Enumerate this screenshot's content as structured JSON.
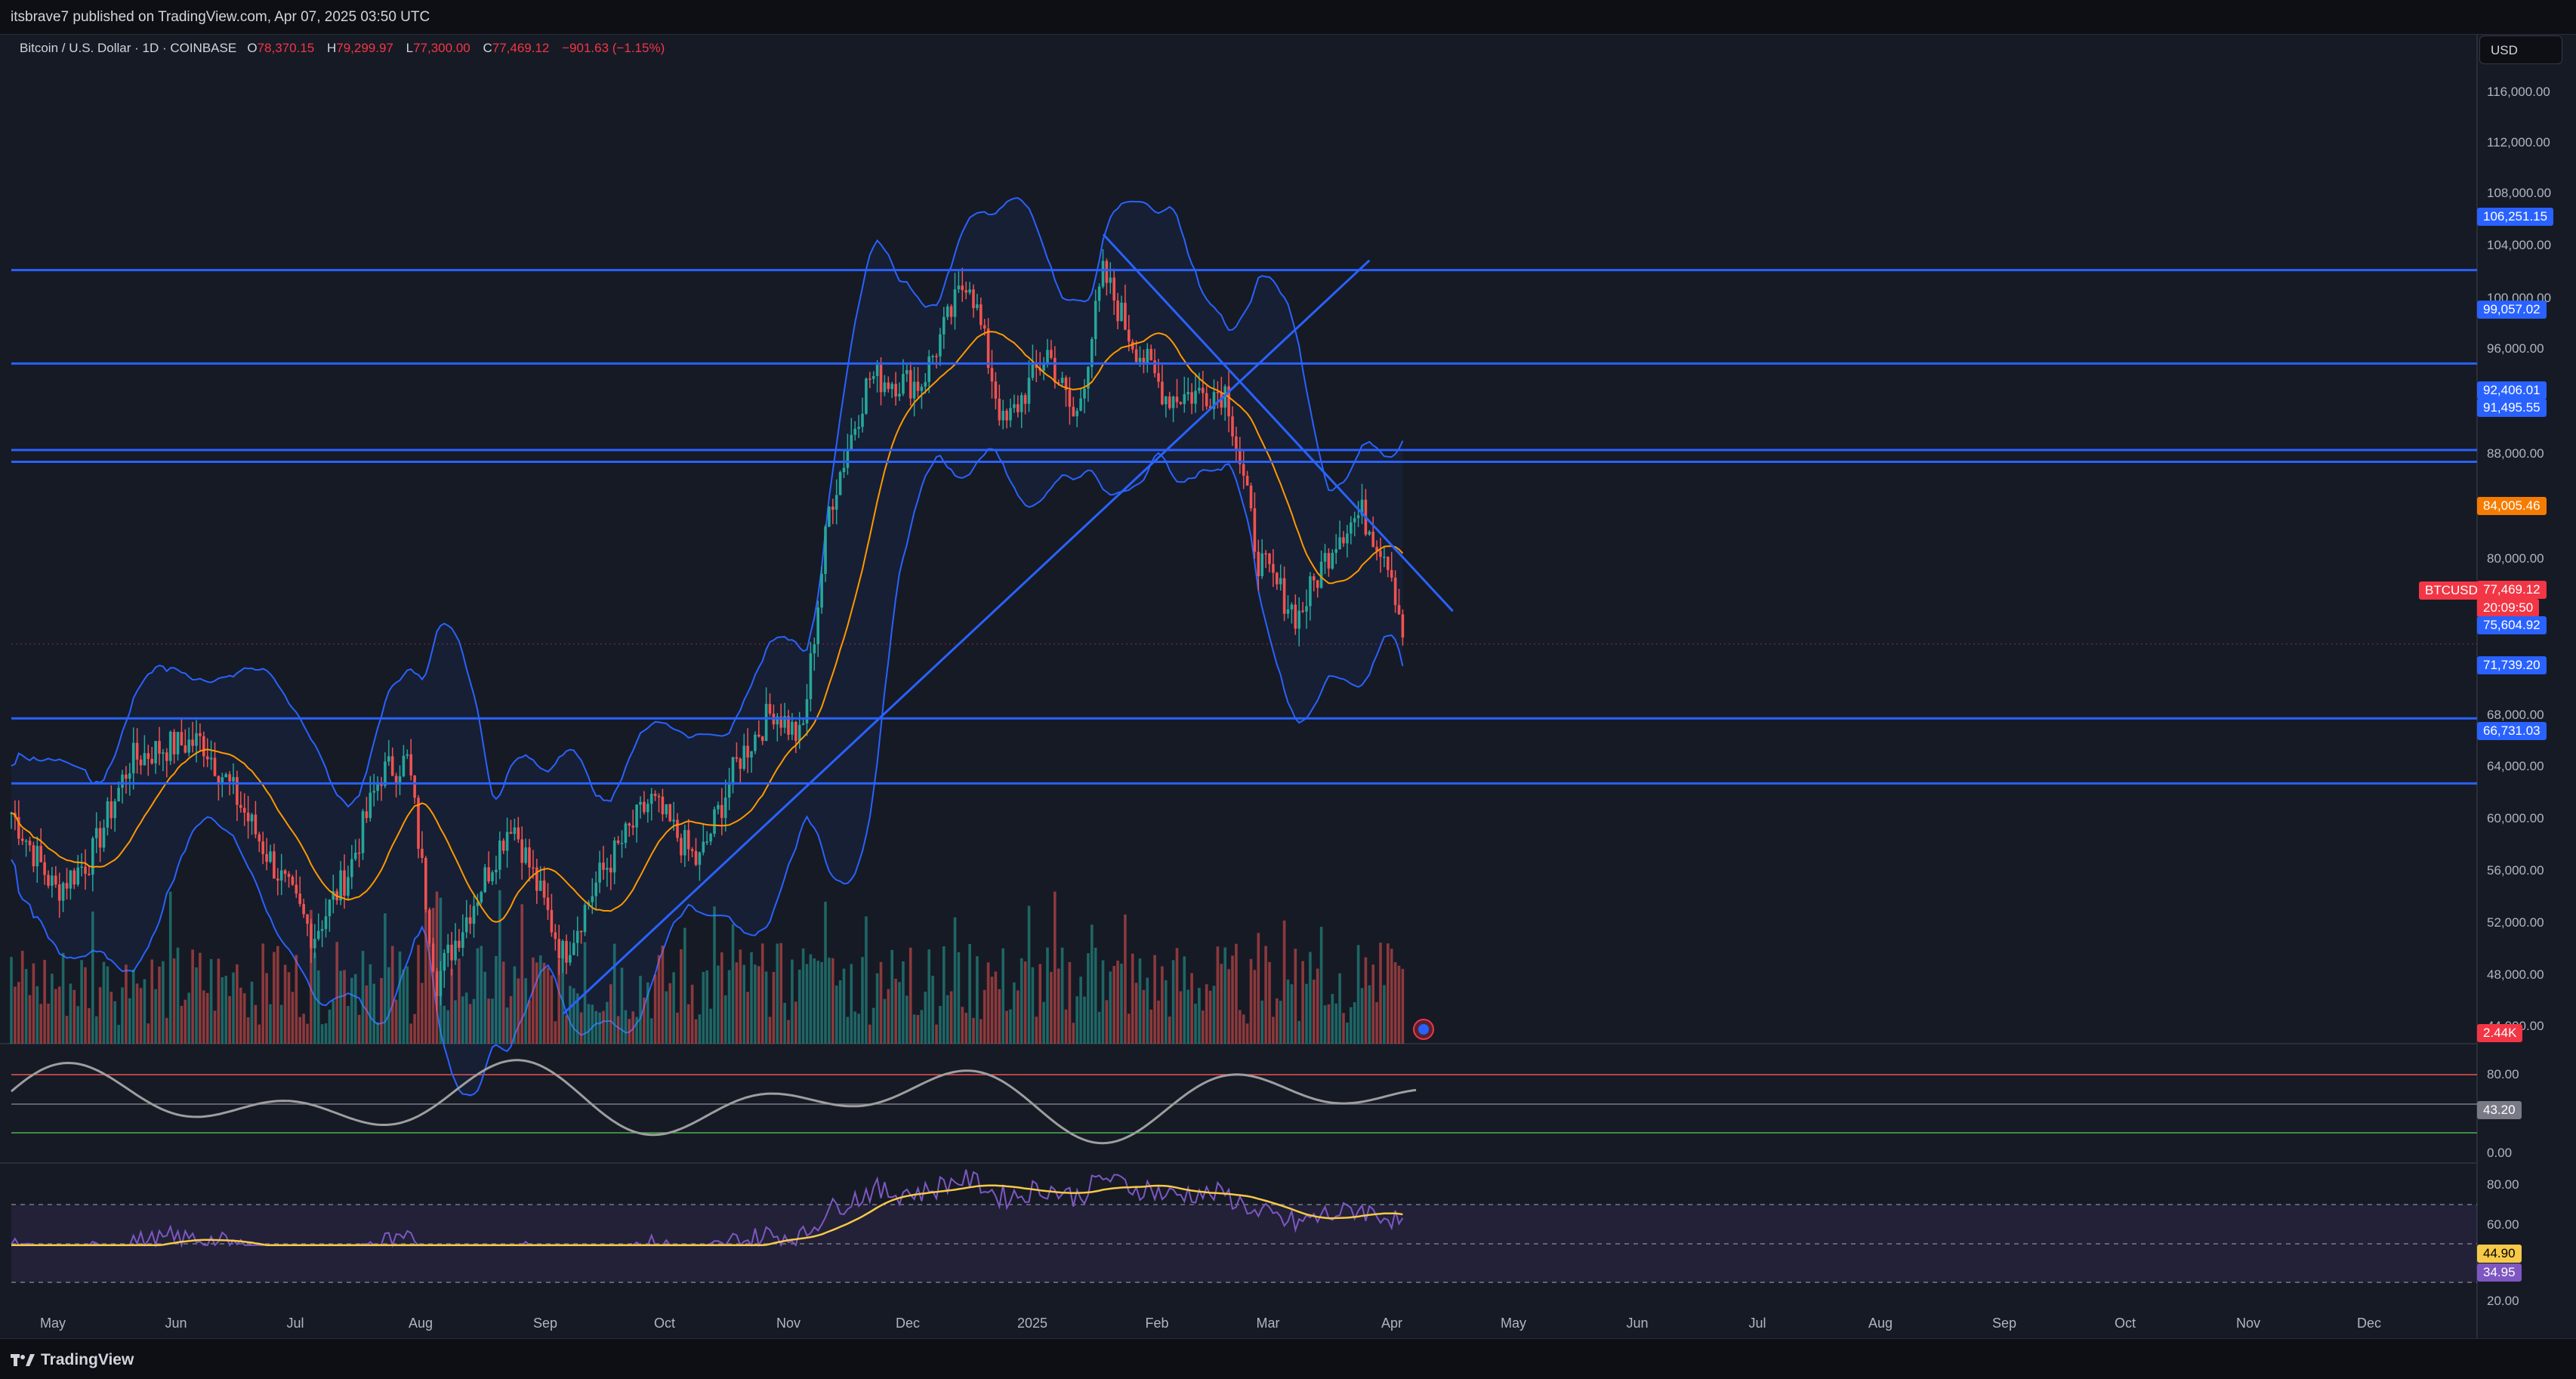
{
  "header": {
    "publisher_line": "itsbrave7 published on TradingView.com, Apr 07, 2025 03:50 UTC"
  },
  "legend": {
    "symbol": "Bitcoin / U.S. Dollar · 1D · COINBASE",
    "open_key": "O",
    "open": "78,370.15",
    "high_key": "H",
    "high": "79,299.97",
    "low_key": "L",
    "low": "77,300.00",
    "close_key": "C",
    "close": "77,469.12",
    "change": "−901.63 (−1.15%)"
  },
  "currency_button": "USD",
  "price_axis": {
    "ticks": [
      "116,000.00",
      "112,000.00",
      "108,000.00",
      "104,000.00",
      "100,000.00",
      "96,000.00",
      "88,000.00",
      "80,000.00",
      "68,000.00",
      "64,000.00",
      "60,000.00",
      "56,000.00",
      "52,000.00",
      "48,000.00",
      "44,000.00"
    ],
    "levels": [
      {
        "label": "106,251.15",
        "color": "#2962ff"
      },
      {
        "label": "99,057.02",
        "color": "#2962ff"
      },
      {
        "label": "92,406.01",
        "color": "#2962ff"
      },
      {
        "label": "91,495.55",
        "color": "#2962ff"
      },
      {
        "label": "84,005.46",
        "color": "#f57c00"
      },
      {
        "label": "77,469.12",
        "color": "#f23645"
      },
      {
        "label": "20:09:50",
        "color": "#f23645"
      },
      {
        "label": "75,604.92",
        "color": "#2962ff"
      },
      {
        "label": "71,739.20",
        "color": "#2962ff"
      },
      {
        "label": "66,731.03",
        "color": "#2962ff"
      }
    ],
    "symbol_tag": "BTCUSD",
    "volume_badge": "2.44K"
  },
  "stoch_pane": {
    "ticks": [
      "80.00",
      "0.00"
    ],
    "value_badge": "43.20"
  },
  "rsi_pane": {
    "ticks": [
      "80.00",
      "60.00",
      "20.00"
    ],
    "ma_badge": "44.90",
    "rsi_badge": "34.95"
  },
  "time_axis": {
    "months": [
      "May",
      "Jun",
      "Jul",
      "Aug",
      "Sep",
      "Oct",
      "Nov",
      "Dec",
      "2025",
      "Feb",
      "Mar",
      "Apr",
      "May",
      "Jun",
      "Jul",
      "Aug",
      "Sep",
      "Oct",
      "Nov",
      "Dec"
    ]
  },
  "footer": {
    "brand": "TradingView"
  },
  "colors": {
    "background": "#161a25",
    "up": "#26a69a",
    "down": "#ef5350",
    "line_blue": "#2962ff",
    "bb_band": "#2962ff",
    "bb_basis": "#ff9800",
    "rsi": "#7e57c2",
    "rsi_ma": "#f7c948"
  },
  "chart_data": {
    "type": "candlestick",
    "symbol": "BTCUSD",
    "interval": "1D",
    "exchange": "COINBASE",
    "ohlc_last": {
      "open": 78370.15,
      "high": 79299.97,
      "low": 77300.0,
      "close": 77469.12
    },
    "price_range": [
      42000,
      118000
    ],
    "close_path": [
      [
        "2024-04-20",
        64500
      ],
      [
        "2024-05-01",
        58500
      ],
      [
        "2024-05-10",
        61000
      ],
      [
        "2024-05-20",
        68500
      ],
      [
        "2024-05-28",
        69500
      ],
      [
        "2024-06-07",
        70000
      ],
      [
        "2024-06-15",
        66000
      ],
      [
        "2024-06-24",
        61000
      ],
      [
        "2024-07-05",
        55000
      ],
      [
        "2024-07-14",
        60000
      ],
      [
        "2024-07-22",
        67500
      ],
      [
        "2024-07-29",
        68500
      ],
      [
        "2024-08-05",
        51500
      ],
      [
        "2024-08-15",
        58000
      ],
      [
        "2024-08-24",
        64000
      ],
      [
        "2024-09-06",
        53500
      ],
      [
        "2024-09-15",
        59500
      ],
      [
        "2024-09-28",
        65500
      ],
      [
        "2024-10-10",
        60500
      ],
      [
        "2024-10-20",
        68500
      ],
      [
        "2024-10-29",
        72500
      ],
      [
        "2024-11-05",
        70000
      ],
      [
        "2024-11-12",
        88000
      ],
      [
        "2024-11-22",
        98000
      ],
      [
        "2024-12-05",
        97500
      ],
      [
        "2024-12-17",
        106000
      ],
      [
        "2024-12-26",
        94000
      ],
      [
        "2025-01-06",
        100000
      ],
      [
        "2025-01-13",
        94500
      ],
      [
        "2025-01-20",
        106000
      ],
      [
        "2025-01-27",
        101000
      ],
      [
        "2025-02-05",
        96500
      ],
      [
        "2025-02-20",
        97000
      ],
      [
        "2025-02-28",
        84000
      ],
      [
        "2025-03-10",
        79500
      ],
      [
        "2025-03-20",
        86000
      ],
      [
        "2025-03-26",
        87500
      ],
      [
        "2025-04-02",
        84000
      ],
      [
        "2025-04-06",
        77469
      ]
    ],
    "horizontal_levels": [
      106251.15,
      99057.02,
      92406.01,
      91495.55,
      71739.2,
      66731.03
    ],
    "trendlines": [
      {
        "from": [
          "2024-09-06",
          49000
        ],
        "to": [
          "2025-03-28",
          107000
        ]
      },
      {
        "from": [
          "2025-01-20",
          109000
        ],
        "to": [
          "2025-04-18",
          80000
        ]
      }
    ],
    "indicators": [
      "Bollinger Bands",
      "Volume",
      "Stochastic RSI",
      "RSI"
    ]
  }
}
